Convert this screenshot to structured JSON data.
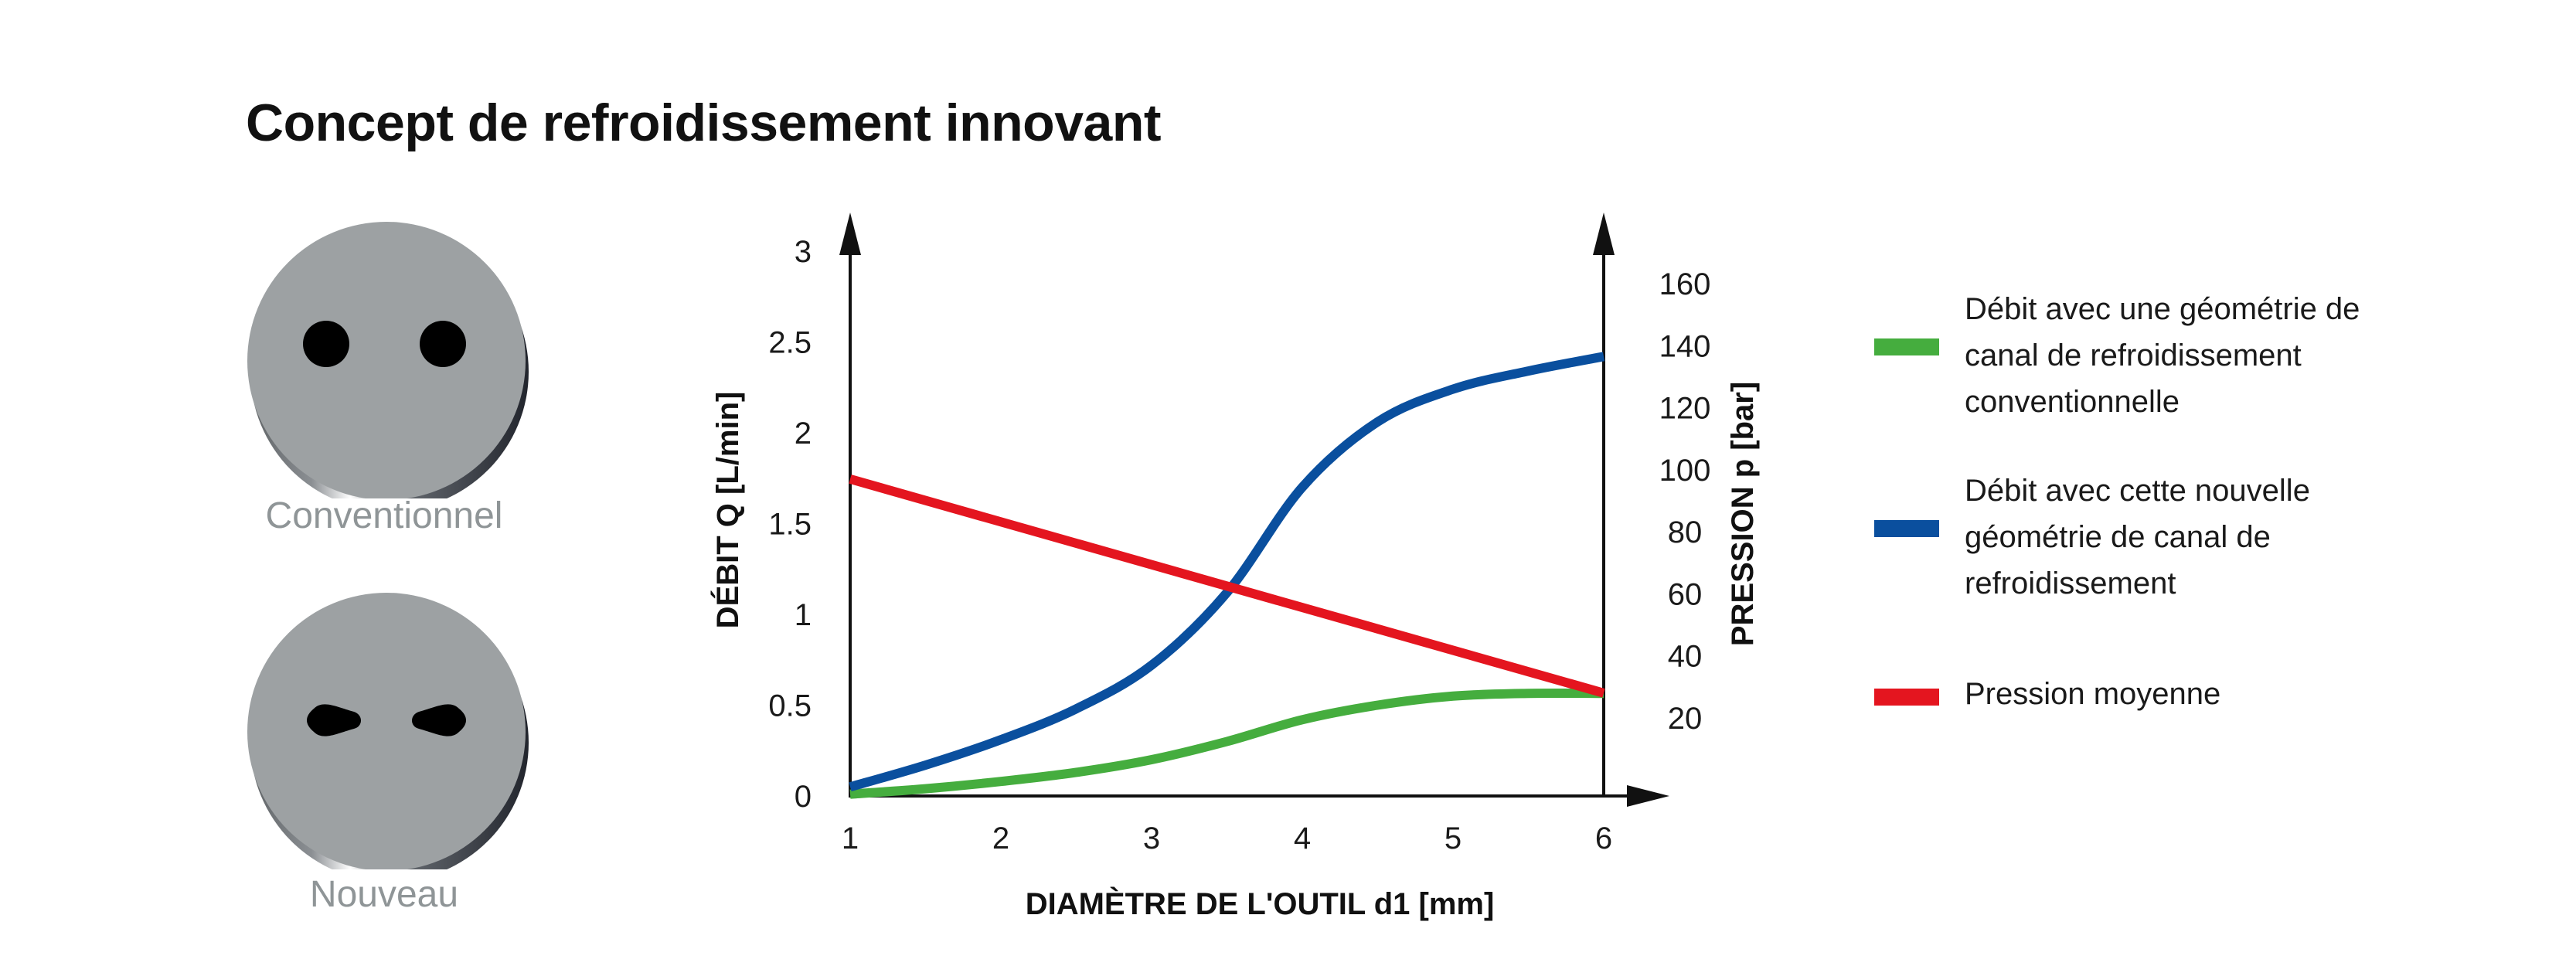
{
  "title": "Concept de refroidissement innovant",
  "coins": [
    {
      "label": "Conventionnel",
      "holes": "round"
    },
    {
      "label": "Nouveau",
      "holes": "drop"
    }
  ],
  "colors": {
    "green": "#45ad3e",
    "blue": "#0a4f9e",
    "red": "#e4151f",
    "coin_face": "#9da1a3",
    "axis": "#111111"
  },
  "legend": [
    {
      "text": "Débit avec une géométrie de canal de refroidissement conventionnelle",
      "color": "#45ad3e"
    },
    {
      "text": "Débit avec cette nouvelle géométrie de canal de refroidissement",
      "color": "#0a4f9e"
    },
    {
      "text": "Pression moyenne",
      "color": "#e4151f"
    }
  ],
  "chart_data": {
    "type": "line",
    "xlabel": "DIAMÈTRE DE L'OUTIL  d1 [mm]",
    "ylabel_left": "DÉBIT   Q [L/min]",
    "ylabel_right": "PRESSION   p [bar]",
    "x_ticks": [
      "1",
      "2",
      "3",
      "4",
      "5",
      "6"
    ],
    "y_left_ticks": [
      "0",
      "0.5",
      "1",
      "1.5",
      "2",
      "2.5",
      "3"
    ],
    "y_right_ticks": [
      "20",
      "40",
      "60",
      "80",
      "100",
      "120",
      "140",
      "160"
    ],
    "xlim": [
      1,
      6
    ],
    "ylim_left": [
      0,
      3
    ],
    "ylim_right": [
      1.7,
      160
    ],
    "legend_position": "right",
    "grid": false,
    "series": [
      {
        "name": "Débit avec une géométrie de canal de refroidissement conventionnelle",
        "axis": "left",
        "color": "#45ad3e",
        "x": [
          1,
          1.5,
          2,
          2.5,
          3,
          3.5,
          4,
          4.5,
          5,
          5.5,
          6
        ],
        "y": [
          0.01,
          0.04,
          0.08,
          0.13,
          0.2,
          0.3,
          0.42,
          0.5,
          0.55,
          0.565,
          0.565
        ]
      },
      {
        "name": "Débit avec cette nouvelle géométrie de canal de refroidissement",
        "axis": "left",
        "color": "#0a4f9e",
        "x": [
          1,
          1.5,
          2,
          2.5,
          3,
          3.5,
          4,
          4.5,
          5,
          5.5,
          6
        ],
        "y": [
          0.05,
          0.17,
          0.31,
          0.48,
          0.72,
          1.12,
          1.7,
          2.06,
          2.24,
          2.34,
          2.42
        ]
      },
      {
        "name": "Pression moyenne",
        "axis": "right",
        "color": "#e4151f",
        "x": [
          1,
          6
        ],
        "y": [
          97,
          28
        ]
      }
    ]
  }
}
